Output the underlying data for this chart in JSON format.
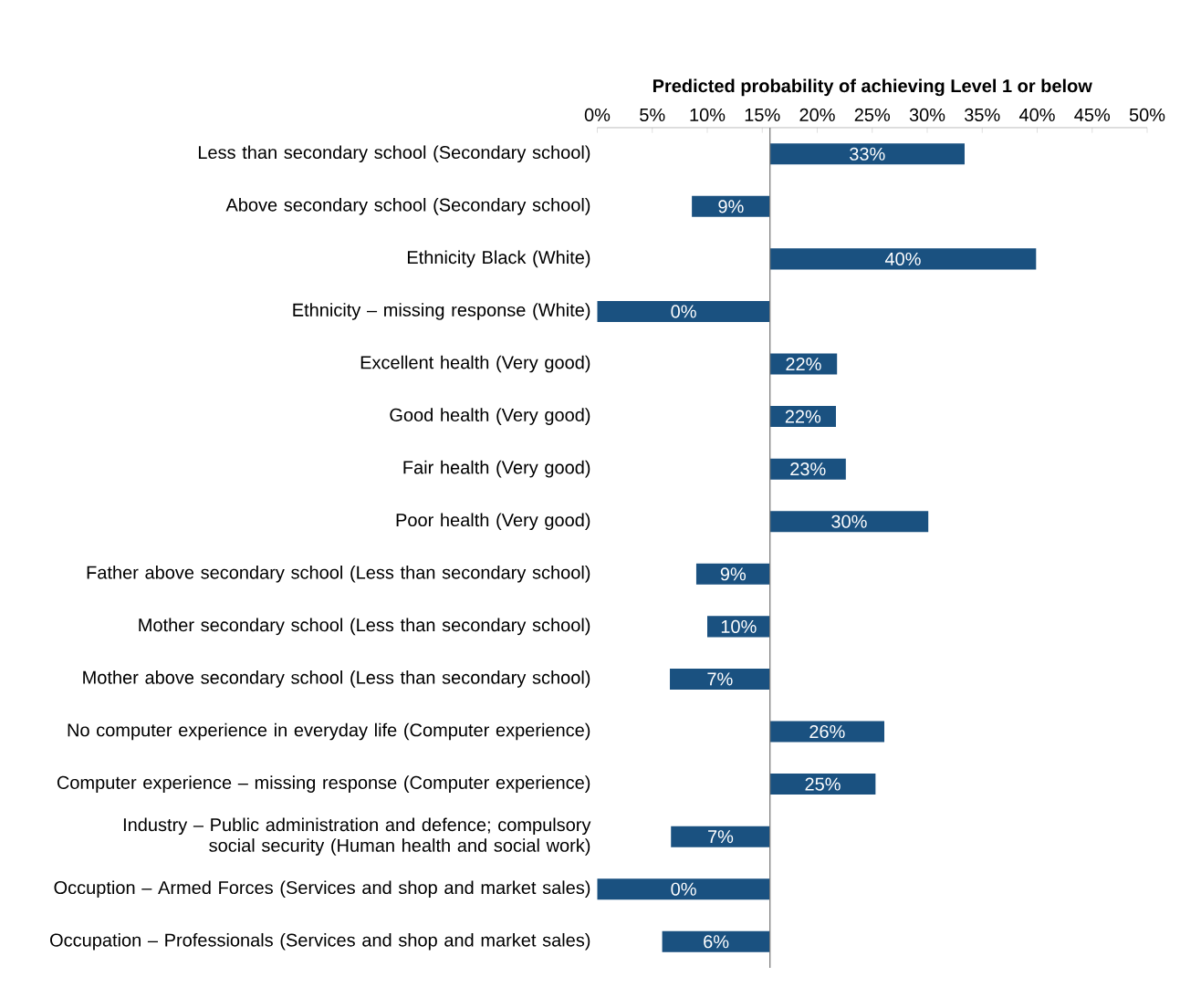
{
  "chart_data": {
    "type": "bar",
    "orientation": "horizontal",
    "xlabel": "Predicted probability of achieving Level 1 or below",
    "categories": [
      "Less than secondary school (Secondary school)",
      "Above secondary school (Secondary school)",
      "Ethnicity Black (White)",
      "Ethnicity – missing response (White)",
      "Excellent health (Very good)",
      "Good health (Very good)",
      "Fair health (Very good)",
      "Poor health (Very good)",
      "Father above secondary school (Less than secondary school)",
      "Mother secondary school (Less than secondary school)",
      "Mother above secondary school (Less than secondary school)",
      "No computer experience in everyday life (Computer experience)",
      "Computer experience – missing response (Computer experience)",
      "Industry – Public administration and defence; compulsory social security (Human health and social work)",
      "Occuption – Armed Forces (Services and shop and market sales)",
      "Occupation – Professionals (Services and shop and market sales)"
    ],
    "base": [
      15.7,
      15.7,
      15.7,
      15.7,
      15.7,
      15.7,
      15.7,
      15.7,
      15.7,
      15.7,
      15.7,
      15.7,
      15.7,
      15.7,
      15.7,
      15.7
    ],
    "values": [
      17.7,
      -7.1,
      24.2,
      -15.7,
      6.1,
      6.0,
      6.9,
      14.4,
      -6.7,
      -5.7,
      -9.1,
      10.4,
      9.6,
      -9.0,
      -15.7,
      -9.8
    ],
    "value_labels": [
      "33%",
      "9%",
      "40%",
      "0%",
      "22%",
      "22%",
      "23%",
      "30%",
      "9%",
      "10%",
      "7%",
      "26%",
      "25%",
      "7%",
      "0%",
      "6%"
    ],
    "color": "#1a5180",
    "xlim": [
      0,
      50
    ],
    "xticks": [
      {
        "value": 0,
        "label": "0%"
      },
      {
        "value": 5,
        "label": "5%"
      },
      {
        "value": 10,
        "label": "10%"
      },
      {
        "value": 15,
        "label": "15%"
      },
      {
        "value": 20,
        "label": "20%"
      },
      {
        "value": 25,
        "label": "25%"
      },
      {
        "value": 30,
        "label": "30%"
      },
      {
        "value": 35,
        "label": "35%"
      },
      {
        "value": 40,
        "label": "40%"
      },
      {
        "value": 45,
        "label": "45%"
      },
      {
        "value": 50,
        "label": "50%"
      }
    ],
    "ref_lines": [
      {
        "axis": "x",
        "value": 15.7,
        "color": "#808080"
      }
    ]
  }
}
